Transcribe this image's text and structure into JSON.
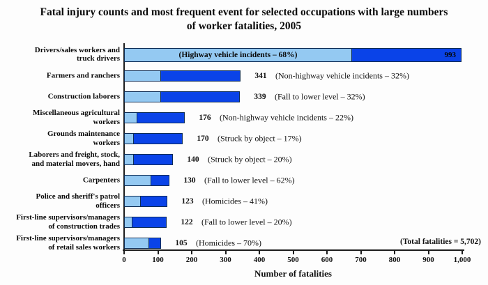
{
  "chart_data": {
    "type": "bar",
    "orientation": "horizontal",
    "title": "Fatal injury counts and most frequent event for selected occupations with large numbers of worker fatalities, 2005",
    "xlabel": "Number of fatalities",
    "xlim": [
      0,
      1000
    ],
    "xtick_values": [
      0,
      100,
      200,
      300,
      400,
      500,
      600,
      700,
      800,
      900,
      1000
    ],
    "xtick_labels": [
      "0",
      "100",
      "200",
      "300",
      "400",
      "500",
      "600",
      "700",
      "800",
      "900",
      "1,000"
    ],
    "grid": false,
    "legend": "none",
    "total_annotation": "(Total fatalities = 5,702)",
    "colors": {
      "event_segment": "#94C9F2",
      "remainder_segment": "#0A43E8",
      "bar_border": "#0D2C55",
      "axis": "#1C1C1C",
      "text": "#0A0A0A"
    },
    "bars": [
      {
        "category": "Drivers/sales workers and\ntruck drivers",
        "value": 993,
        "value_label": "993",
        "event_pct": 68,
        "event_label": "(Highway vehicle incidents – 68%)",
        "labels_inside": true
      },
      {
        "category": "Farmers and ranchers",
        "value": 341,
        "value_label": "341",
        "event_pct": 32,
        "event_label": "(Non-highway vehicle incidents – 32%)",
        "labels_inside": false
      },
      {
        "category": "Construction laborers",
        "value": 339,
        "value_label": "339",
        "event_pct": 32,
        "event_label": "(Fall to lower level – 32%)",
        "labels_inside": false
      },
      {
        "category": "Miscellaneous agricultural\nworkers",
        "value": 176,
        "value_label": "176",
        "event_pct": 22,
        "event_label": "(Non-highway vehicle incidents – 22%)",
        "labels_inside": false
      },
      {
        "category": "Grounds maintenance\nworkers",
        "value": 170,
        "value_label": "170",
        "event_pct": 17,
        "event_label": "(Struck by object – 17%)",
        "labels_inside": false
      },
      {
        "category": "Laborers and freight, stock,\nand material movers, hand",
        "value": 140,
        "value_label": "140",
        "event_pct": 20,
        "event_label": "(Struck by object – 20%)",
        "labels_inside": false
      },
      {
        "category": "Carpenters",
        "value": 130,
        "value_label": "130",
        "event_pct": 62,
        "event_label": "(Fall to lower level – 62%)",
        "labels_inside": false
      },
      {
        "category": "Police and sheriff's patrol\nofficers",
        "value": 123,
        "value_label": "123",
        "event_pct": 41,
        "event_label": "(Homicides – 41%)",
        "labels_inside": false
      },
      {
        "category": "First-line supervisors/managers\nof construction trades",
        "value": 122,
        "value_label": "122",
        "event_pct": 20,
        "event_label": "(Fall to lower level – 20%)",
        "labels_inside": false
      },
      {
        "category": "First-line supervisors/managers\nof retail sales workers",
        "value": 105,
        "value_label": "105",
        "event_pct": 70,
        "event_label": "(Homicides – 70%)",
        "labels_inside": false
      }
    ]
  }
}
